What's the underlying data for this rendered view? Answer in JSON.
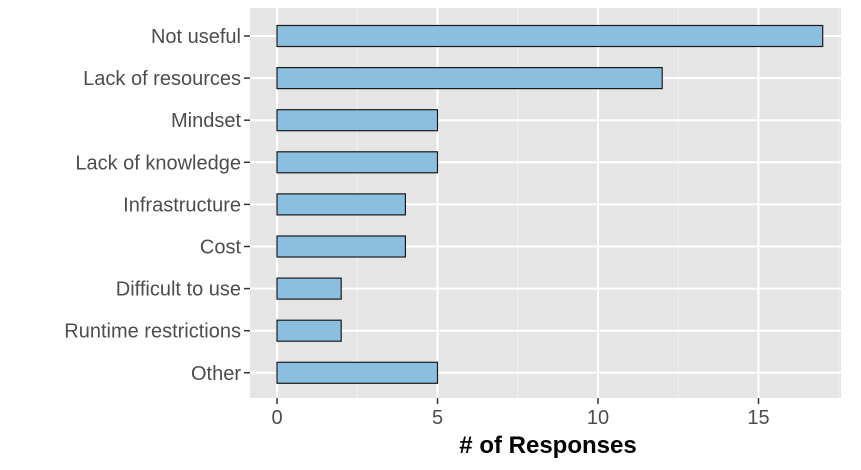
{
  "chart_data": {
    "type": "bar",
    "orientation": "horizontal",
    "categories": [
      "Not useful",
      "Lack of resources",
      "Mindset",
      "Lack of knowledge",
      "Infrastructure",
      "Cost",
      "Difficult to use",
      "Runtime restrictions",
      "Other"
    ],
    "values": [
      17,
      12,
      5,
      5,
      4,
      4,
      2,
      2,
      5
    ],
    "xlabel": "# of Responses",
    "ylabel": "",
    "title": "",
    "xlim": [
      0,
      17.85
    ],
    "xticks": [
      0,
      5,
      10,
      15
    ],
    "grid": true,
    "colors": {
      "bar_fill": "#8bbfe0",
      "bar_stroke": "#1a1a1a",
      "panel": "#e5e5e5",
      "grid_major": "#ffffff",
      "grid_minor": "#f2f2f2"
    }
  }
}
